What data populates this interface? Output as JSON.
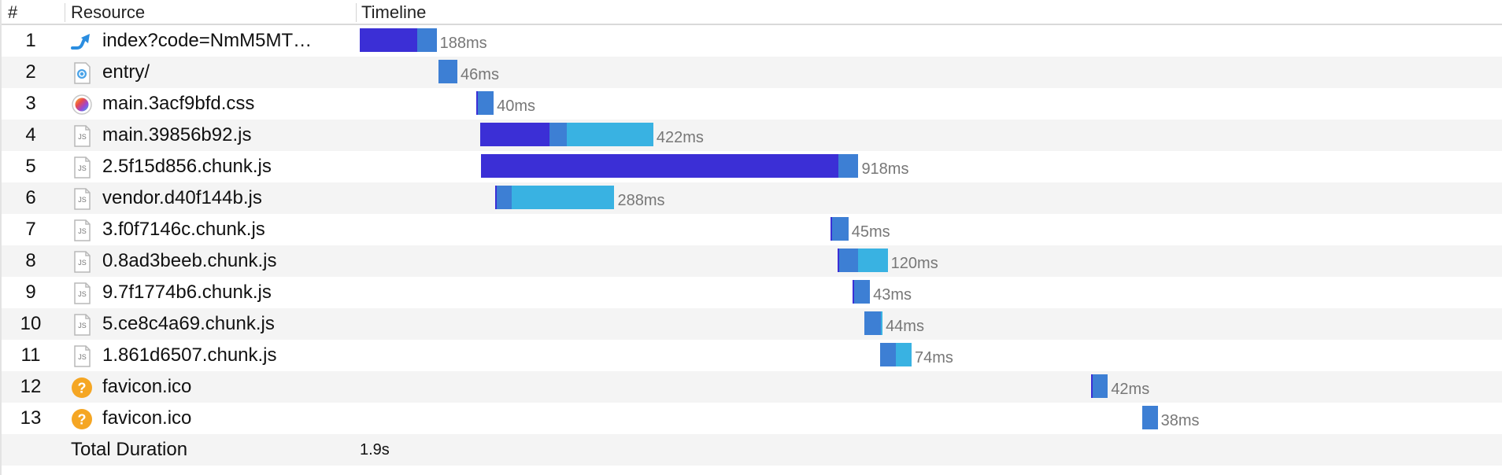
{
  "header": {
    "num_label": "#",
    "resource_label": "Resource",
    "timeline_label": "Timeline"
  },
  "colors": {
    "request": "#3b2fd6",
    "waiting": "#3d7fd4",
    "receiving": "#39b2e2",
    "row_alt": "#f4f4f4"
  },
  "timeline_scale_ms_max": 1900,
  "rows": [
    {
      "num": "1",
      "name": "index?code=NmM5MT…",
      "icon": "redirect-arrow-icon",
      "start_ms": 0,
      "segments": [
        {
          "type": "request",
          "ms": 100
        },
        {
          "type": "waiting",
          "ms": 33
        }
      ],
      "duration": "188ms"
    },
    {
      "num": "2",
      "name": "entry/",
      "icon": "document-icon",
      "start_ms": 136,
      "segments": [
        {
          "type": "waiting",
          "ms": 33
        }
      ],
      "duration": "46ms"
    },
    {
      "num": "3",
      "name": "main.3acf9bfd.css",
      "icon": "stylesheet-icon",
      "start_ms": 202,
      "segments": [
        {
          "type": "request",
          "ms": 2
        },
        {
          "type": "waiting",
          "ms": 27
        }
      ],
      "duration": "40ms"
    },
    {
      "num": "4",
      "name": "main.39856b92.js",
      "icon": "javascript-file-icon",
      "start_ms": 208,
      "segments": [
        {
          "type": "request",
          "ms": 120
        },
        {
          "type": "waiting",
          "ms": 30
        },
        {
          "type": "receiving",
          "ms": 150
        }
      ],
      "duration": "422ms"
    },
    {
      "num": "5",
      "name": "2.5f15d856.chunk.js",
      "icon": "javascript-file-icon",
      "start_ms": 210,
      "segments": [
        {
          "type": "request",
          "ms": 618
        },
        {
          "type": "waiting",
          "ms": 35
        }
      ],
      "duration": "918ms"
    },
    {
      "num": "6",
      "name": "vendor.d40f144b.js",
      "icon": "javascript-file-icon",
      "start_ms": 234,
      "segments": [
        {
          "type": "request",
          "ms": 2
        },
        {
          "type": "waiting",
          "ms": 26
        },
        {
          "type": "receiving",
          "ms": 178
        }
      ],
      "duration": "288ms"
    },
    {
      "num": "7",
      "name": "3.f0f7146c.chunk.js",
      "icon": "javascript-file-icon",
      "start_ms": 815,
      "segments": [
        {
          "type": "request",
          "ms": 2
        },
        {
          "type": "waiting",
          "ms": 28
        }
      ],
      "duration": "45ms"
    },
    {
      "num": "8",
      "name": "0.8ad3beeb.chunk.js",
      "icon": "javascript-file-icon",
      "start_ms": 827,
      "segments": [
        {
          "type": "request",
          "ms": 2
        },
        {
          "type": "waiting",
          "ms": 33
        },
        {
          "type": "receiving",
          "ms": 51
        }
      ],
      "duration": "120ms"
    },
    {
      "num": "9",
      "name": "9.7f1774b6.chunk.js",
      "icon": "javascript-file-icon",
      "start_ms": 853,
      "segments": [
        {
          "type": "request",
          "ms": 3
        },
        {
          "type": "waiting",
          "ms": 27
        }
      ],
      "duration": "43ms"
    },
    {
      "num": "10",
      "name": "5.ce8c4a69.chunk.js",
      "icon": "javascript-file-icon",
      "start_ms": 873,
      "segments": [
        {
          "type": "waiting",
          "ms": 29
        },
        {
          "type": "receiving",
          "ms": 2
        }
      ],
      "duration": "44ms"
    },
    {
      "num": "11",
      "name": "1.861d6507.chunk.js",
      "icon": "javascript-file-icon",
      "start_ms": 901,
      "segments": [
        {
          "type": "waiting",
          "ms": 27
        },
        {
          "type": "receiving",
          "ms": 27
        }
      ],
      "duration": "74ms"
    },
    {
      "num": "12",
      "name": "favicon.ico",
      "icon": "question-mark-icon",
      "start_ms": 1265,
      "segments": [
        {
          "type": "request",
          "ms": 2
        },
        {
          "type": "waiting",
          "ms": 27
        }
      ],
      "duration": "42ms"
    },
    {
      "num": "13",
      "name": "favicon.ico",
      "icon": "question-mark-icon",
      "start_ms": 1354,
      "segments": [
        {
          "type": "waiting",
          "ms": 27
        }
      ],
      "duration": "38ms"
    }
  ],
  "total": {
    "label": "Total Duration",
    "value": "1.9s"
  }
}
